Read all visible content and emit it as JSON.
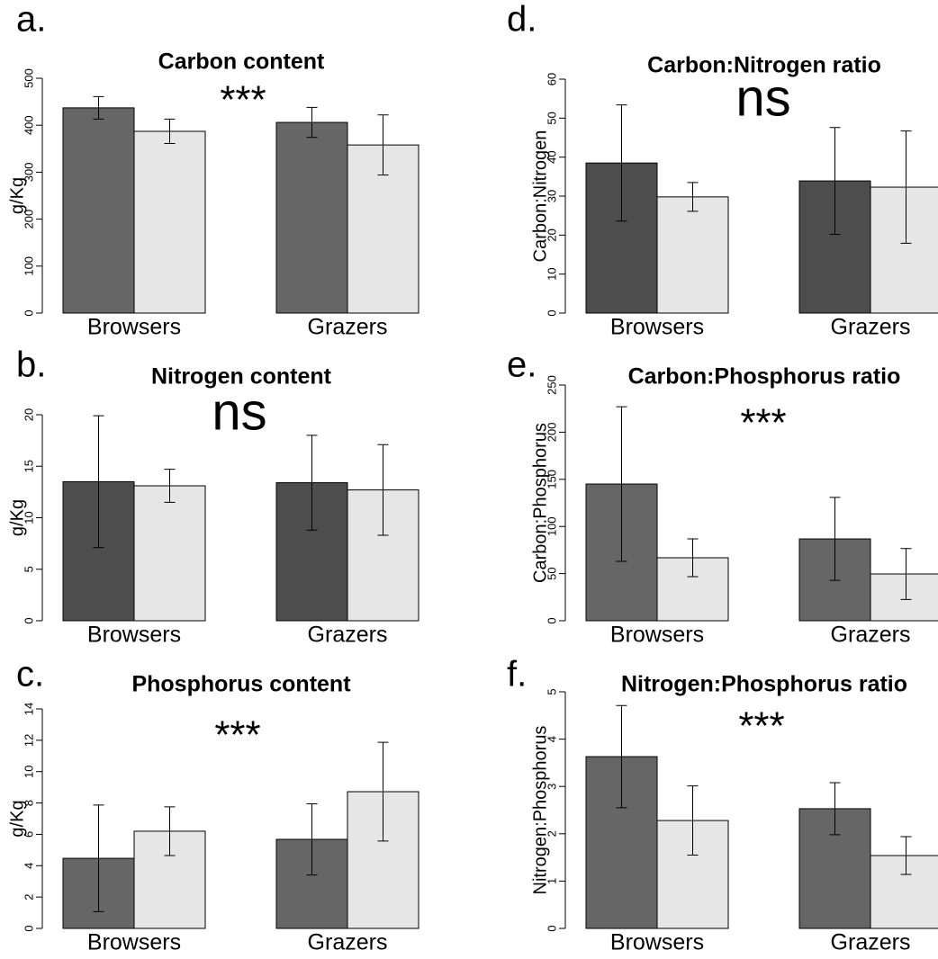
{
  "chart_data": [
    {
      "type": "bar",
      "panel": "a.",
      "title": "Carbon content",
      "annotation": "***",
      "ylabel": "g/Kg",
      "categories": [
        "Browsers",
        "Grazers"
      ],
      "series": [
        {
          "color": "#666666",
          "values": [
            437,
            406
          ],
          "errors": [
            24,
            32
          ]
        },
        {
          "color": "#e6e6e6",
          "values": [
            387,
            358
          ],
          "errors": [
            26,
            64
          ]
        }
      ],
      "ylim": [
        0,
        500
      ],
      "yticks": [
        0,
        100,
        200,
        300,
        400,
        500
      ]
    },
    {
      "type": "bar",
      "panel": "b.",
      "title": "Nitrogen content",
      "annotation": "ns",
      "ylabel": "g/Kg",
      "categories": [
        "Browsers",
        "Grazers"
      ],
      "series": [
        {
          "color": "#4d4d4d",
          "values": [
            13.5,
            13.4
          ],
          "errors": [
            6.4,
            4.6
          ]
        },
        {
          "color": "#e6e6e6",
          "values": [
            13.1,
            12.7
          ],
          "errors": [
            1.6,
            4.4
          ]
        }
      ],
      "ylim": [
        0,
        20
      ],
      "yticks": [
        0,
        5,
        10,
        15,
        20
      ]
    },
    {
      "type": "bar",
      "panel": "c.",
      "title": "Phosphorus content",
      "annotation": "***",
      "ylabel": "g/Kg",
      "categories": [
        "Browsers",
        "Grazers"
      ],
      "series": [
        {
          "color": "#666666",
          "values": [
            4.47,
            5.68
          ],
          "errors": [
            3.4,
            2.27
          ]
        },
        {
          "color": "#e6e6e6",
          "values": [
            6.2,
            8.72
          ],
          "errors": [
            1.55,
            3.15
          ]
        }
      ],
      "ylim": [
        0,
        14
      ],
      "yticks": [
        0,
        2,
        4,
        6,
        8,
        10,
        12,
        14
      ]
    },
    {
      "type": "bar",
      "panel": "d.",
      "title": "Carbon:Nitrogen ratio",
      "annotation": "ns",
      "ylabel": "Carbon:Nitrogen",
      "categories": [
        "Browsers",
        "Grazers"
      ],
      "series": [
        {
          "color": "#4d4d4d",
          "values": [
            38.5,
            33.9
          ],
          "errors": [
            14.9,
            13.7
          ]
        },
        {
          "color": "#e6e6e6",
          "values": [
            29.8,
            32.3
          ],
          "errors": [
            3.7,
            14.4
          ]
        }
      ],
      "ylim": [
        0,
        60
      ],
      "yticks": [
        0,
        10,
        20,
        30,
        40,
        50,
        60
      ]
    },
    {
      "type": "bar",
      "panel": "e.",
      "title": "Carbon:Phosphorus ratio",
      "annotation": "***",
      "ylabel": "Carbon:Phosphorus",
      "categories": [
        "Browsers",
        "Grazers"
      ],
      "series": [
        {
          "color": "#666666",
          "values": [
            145,
            86.8
          ],
          "errors": [
            82,
            44
          ]
        },
        {
          "color": "#e6e6e6",
          "values": [
            66.8,
            49.6
          ],
          "errors": [
            20,
            27
          ]
        }
      ],
      "ylim": [
        0,
        250
      ],
      "yticks": [
        0,
        50,
        100,
        150,
        200,
        250
      ]
    },
    {
      "type": "bar",
      "panel": "f.",
      "title": "Nitrogen:Phosphorus ratio",
      "annotation": "***",
      "ylabel": "Nitrogen:Phosphorus",
      "categories": [
        "Browsers",
        "Grazers"
      ],
      "series": [
        {
          "color": "#666666",
          "values": [
            3.63,
            2.53
          ],
          "errors": [
            1.08,
            0.55
          ]
        },
        {
          "color": "#e6e6e6",
          "values": [
            2.28,
            1.54
          ],
          "errors": [
            0.73,
            0.4
          ]
        }
      ],
      "ylim": [
        0,
        5
      ],
      "yticks": [
        0,
        1,
        2,
        3,
        4,
        5
      ]
    }
  ]
}
